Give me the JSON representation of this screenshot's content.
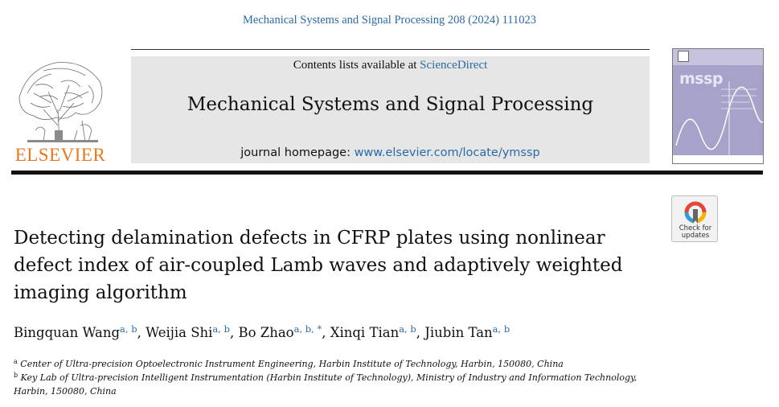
{
  "citation": "Mechanical Systems and Signal Processing 208 (2024) 111023",
  "publisher": {
    "name": "ELSEVIER",
    "logo_icon": "elsevier-tree-logo"
  },
  "masthead": {
    "contents_prefix": "Contents lists available at ",
    "contents_link": "ScienceDirect",
    "journal_title": "Mechanical Systems and Signal Processing",
    "homepage_prefix": "journal homepage: ",
    "homepage_link": "www.elsevier.com/locate/ymssp"
  },
  "cover": {
    "logo_text": "mssp"
  },
  "check_updates": {
    "line1": "Check for",
    "line2": "updates"
  },
  "article": {
    "title_lines": [
      "Detecting delamination defects in CFRP plates using nonlinear",
      "defect index of air-coupled Lamb waves and adaptively weighted",
      "imaging algorithm"
    ],
    "authors": [
      {
        "name": "Bingquan Wang",
        "sup": "a, b",
        "sep": ", "
      },
      {
        "name": "Weijia Shi",
        "sup": "a, b",
        "sep": ", "
      },
      {
        "name": "Bo Zhao",
        "sup": "a, b, *",
        "sep": ", "
      },
      {
        "name": "Xinqi Tian",
        "sup": "a, b",
        "sep": ", "
      },
      {
        "name": "Jiubin Tan",
        "sup": "a, b",
        "sep": ""
      }
    ],
    "affiliations": [
      {
        "mark": "a",
        "text": "Center of Ultra-precision Optoelectronic Instrument Engineering, Harbin Institute of Technology, Harbin, 150080, China"
      },
      {
        "mark": "b",
        "text": "Key Lab of Ultra-precision Intelligent Instrumentation (Harbin Institute of Technology), Ministry of Industry and Information Technology, Harbin, 150080, China"
      }
    ]
  },
  "colors": {
    "link": "#2a6aa8",
    "publisher_orange": "#e8781e",
    "masthead_bg": "#e6e6e6",
    "cover_bg": "#a7a2c9"
  }
}
